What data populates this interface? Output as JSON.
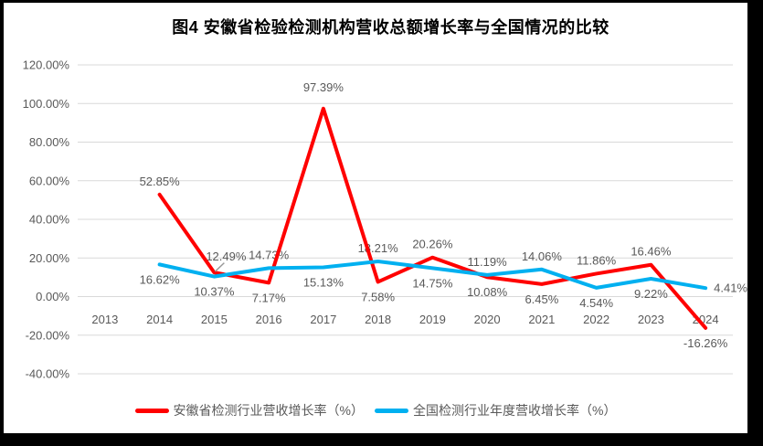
{
  "frame": {
    "border_color": "#000000",
    "canvas_color": "#FFFFFF"
  },
  "chart_data": {
    "type": "line",
    "title": "图4 安徽省检验检测机构营收总额增长率与全国情况的比较",
    "categories": [
      "2013",
      "2014",
      "2015",
      "2016",
      "2017",
      "2018",
      "2019",
      "2020",
      "2021",
      "2022",
      "2023",
      "2024"
    ],
    "xlabel": "",
    "ylabel": "",
    "y_axis": {
      "min": -40,
      "max": 120,
      "step": 20,
      "tick_labels": [
        "120.00%",
        "100.00%",
        "80.00%",
        "60.00%",
        "40.00%",
        "20.00%",
        "0.00%",
        "-20.00%",
        "-40.00%"
      ]
    },
    "grid": true,
    "gridline_color": "#D9D9D9",
    "axis_label_color": "#595959",
    "data_label_color": "#595959",
    "legend_position": "bottom",
    "series": [
      {
        "name": "安徽省检测行业营收增长率（%）",
        "color": "#FF0000",
        "values": [
          null,
          52.85,
          12.49,
          7.17,
          97.39,
          7.58,
          20.26,
          10.08,
          6.45,
          11.86,
          16.46,
          -16.26
        ],
        "labels": [
          null,
          "52.85%",
          "12.49%",
          "7.17%",
          "97.39%",
          "7.58%",
          "20.26%",
          "10.08%",
          "6.45%",
          "11.86%",
          "16.46%",
          "-16.26%"
        ],
        "label_pos": [
          null,
          "above",
          "above-leader",
          "below",
          "above-far",
          "below",
          "above",
          "below",
          "below",
          "above",
          "above",
          "below"
        ]
      },
      {
        "name": "全国检测行业年度营收增长率（%）",
        "color": "#00B0F0",
        "values": [
          null,
          16.62,
          10.37,
          14.73,
          15.13,
          18.21,
          14.75,
          11.19,
          14.06,
          4.54,
          9.22,
          4.41
        ],
        "labels": [
          null,
          "16.62%",
          "10.37%",
          "14.73%",
          "15.13%",
          "18.21%",
          "14.75%",
          "11.19%",
          "14.06%",
          "4.54%",
          "9.22%",
          "4.41%"
        ],
        "label_pos": [
          null,
          "below",
          "below",
          "above",
          "below",
          "above",
          "below",
          "above",
          "above",
          "below",
          "below",
          "right"
        ]
      }
    ],
    "leader_line": {
      "series_index": 0,
      "point_index": 2,
      "color": "#999999"
    }
  }
}
